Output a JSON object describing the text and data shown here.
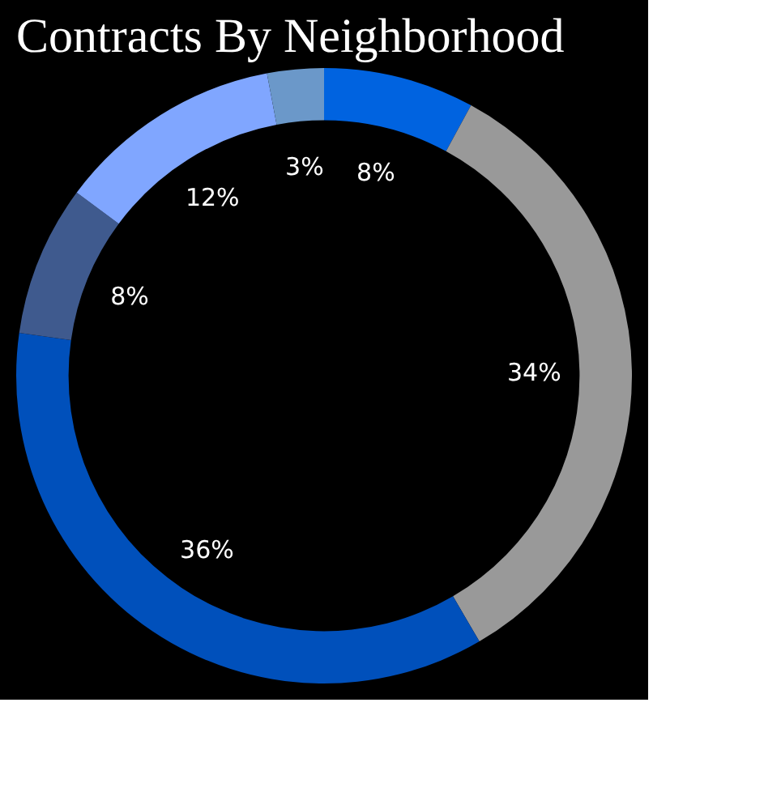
{
  "chart_data": {
    "type": "donut",
    "title": "Contracts By Neighborhood",
    "categories": [
      null,
      null,
      null,
      null,
      null,
      null
    ],
    "values": [
      8,
      34,
      36,
      8,
      12,
      3
    ],
    "value_labels": [
      "8%",
      "34%",
      "36%",
      "8%",
      "12%",
      "3%"
    ],
    "colors": [
      "#0063e0",
      "#999999",
      "#0050bb",
      "#3f5a8e",
      "#80a6ff",
      "#6b98c9"
    ],
    "legend": false
  }
}
